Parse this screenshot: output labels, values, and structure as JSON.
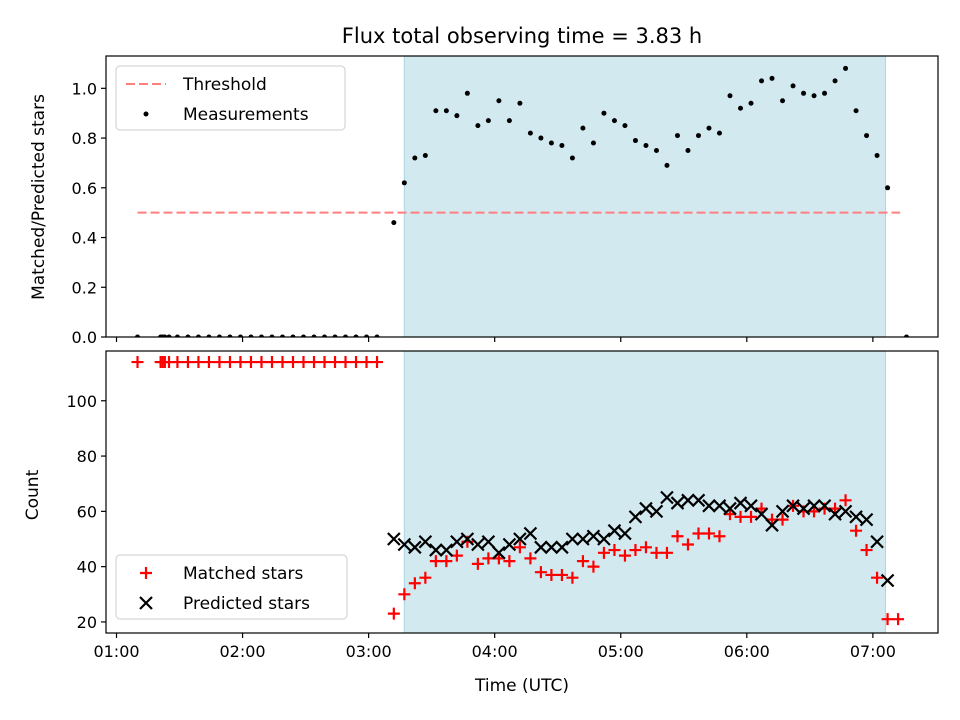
{
  "chart_data": [
    {
      "type": "scatter",
      "title": "Flux total observing time = 3.83 h",
      "ylabel": "Matched/Predicted stars",
      "xlim": [
        "00:55",
        "07:31"
      ],
      "ylim": [
        0,
        1.13
      ],
      "yticks": [
        "0.0",
        "0.2",
        "0.4",
        "0.6",
        "0.8",
        "1.0"
      ],
      "legend_position": "top-left",
      "shaded_span": [
        "03:17",
        "07:06"
      ],
      "threshold": {
        "name": "Threshold",
        "value": 0.5,
        "x_range": [
          "01:10",
          "07:13"
        ],
        "color": "#ff7f7f"
      },
      "series": [
        {
          "name": "Measurements",
          "color": "#000000",
          "points": [
            [
              "01:10",
              0
            ],
            [
              "01:21",
              0
            ],
            [
              "01:22",
              0
            ],
            [
              "01:23",
              0
            ],
            [
              "01:25",
              0
            ],
            [
              "01:29",
              0
            ],
            [
              "01:34",
              0
            ],
            [
              "01:39",
              0
            ],
            [
              "01:44",
              0
            ],
            [
              "01:49",
              0
            ],
            [
              "01:54",
              0
            ],
            [
              "01:59",
              0
            ],
            [
              "02:04",
              0
            ],
            [
              "02:09",
              0
            ],
            [
              "02:14",
              0
            ],
            [
              "02:19",
              0
            ],
            [
              "02:24",
              0
            ],
            [
              "02:29",
              0
            ],
            [
              "02:34",
              0
            ],
            [
              "02:39",
              0
            ],
            [
              "02:44",
              0
            ],
            [
              "02:49",
              0
            ],
            [
              "02:54",
              0
            ],
            [
              "02:59",
              0
            ],
            [
              "03:04",
              0
            ],
            [
              "03:12",
              0.46
            ],
            [
              "03:17",
              0.62
            ],
            [
              "03:22",
              0.72
            ],
            [
              "03:27",
              0.73
            ],
            [
              "03:32",
              0.91
            ],
            [
              "03:37",
              0.91
            ],
            [
              "03:42",
              0.89
            ],
            [
              "03:47",
              0.98
            ],
            [
              "03:52",
              0.85
            ],
            [
              "03:57",
              0.87
            ],
            [
              "04:02",
              0.95
            ],
            [
              "04:07",
              0.87
            ],
            [
              "04:12",
              0.94
            ],
            [
              "04:17",
              0.82
            ],
            [
              "04:22",
              0.8
            ],
            [
              "04:27",
              0.78
            ],
            [
              "04:32",
              0.77
            ],
            [
              "04:37",
              0.72
            ],
            [
              "04:42",
              0.84
            ],
            [
              "04:47",
              0.78
            ],
            [
              "04:52",
              0.9
            ],
            [
              "04:57",
              0.87
            ],
            [
              "05:02",
              0.85
            ],
            [
              "05:07",
              0.79
            ],
            [
              "05:12",
              0.77
            ],
            [
              "05:17",
              0.75
            ],
            [
              "05:22",
              0.69
            ],
            [
              "05:27",
              0.81
            ],
            [
              "05:32",
              0.75
            ],
            [
              "05:37",
              0.81
            ],
            [
              "05:42",
              0.84
            ],
            [
              "05:47",
              0.82
            ],
            [
              "05:52",
              0.97
            ],
            [
              "05:57",
              0.92
            ],
            [
              "06:02",
              0.94
            ],
            [
              "06:07",
              1.03
            ],
            [
              "06:12",
              1.04
            ],
            [
              "06:17",
              0.95
            ],
            [
              "06:22",
              1.01
            ],
            [
              "06:27",
              0.98
            ],
            [
              "06:32",
              0.97
            ],
            [
              "06:37",
              0.98
            ],
            [
              "06:42",
              1.03
            ],
            [
              "06:47",
              1.08
            ],
            [
              "06:52",
              0.91
            ],
            [
              "06:57",
              0.81
            ],
            [
              "07:02",
              0.73
            ],
            [
              "07:07",
              0.6
            ],
            [
              "07:16",
              0
            ]
          ]
        }
      ]
    },
    {
      "type": "scatter",
      "xlabel": "Time (UTC)",
      "ylabel": "Count",
      "xlim": [
        "00:55",
        "07:31"
      ],
      "xticks": [
        "01:00",
        "02:00",
        "03:00",
        "04:00",
        "05:00",
        "06:00",
        "07:00"
      ],
      "ylim": [
        16,
        118
      ],
      "yticks": [
        "20",
        "40",
        "60",
        "80",
        "100"
      ],
      "legend_position": "bottom-left",
      "shaded_span": [
        "03:17",
        "07:06"
      ],
      "series": [
        {
          "name": "Matched stars",
          "marker": "plus",
          "color": "#ff0000",
          "points": [
            [
              "01:10",
              114
            ],
            [
              "01:21",
              114
            ],
            [
              "01:22",
              114
            ],
            [
              "01:23",
              114
            ],
            [
              "01:25",
              114
            ],
            [
              "01:29",
              114
            ],
            [
              "01:34",
              114
            ],
            [
              "01:39",
              114
            ],
            [
              "01:44",
              114
            ],
            [
              "01:49",
              114
            ],
            [
              "01:54",
              114
            ],
            [
              "01:59",
              114
            ],
            [
              "02:04",
              114
            ],
            [
              "02:09",
              114
            ],
            [
              "02:14",
              114
            ],
            [
              "02:19",
              114
            ],
            [
              "02:24",
              114
            ],
            [
              "02:29",
              114
            ],
            [
              "02:34",
              114
            ],
            [
              "02:39",
              114
            ],
            [
              "02:44",
              114
            ],
            [
              "02:49",
              114
            ],
            [
              "02:54",
              114
            ],
            [
              "02:59",
              114
            ],
            [
              "03:04",
              114
            ],
            [
              "03:12",
              23
            ],
            [
              "03:17",
              30
            ],
            [
              "03:22",
              34
            ],
            [
              "03:27",
              36
            ],
            [
              "03:32",
              42
            ],
            [
              "03:37",
              42
            ],
            [
              "03:42",
              44
            ],
            [
              "03:47",
              49
            ],
            [
              "03:52",
              41
            ],
            [
              "03:57",
              43
            ],
            [
              "04:02",
              43
            ],
            [
              "04:07",
              42
            ],
            [
              "04:12",
              47
            ],
            [
              "04:17",
              43
            ],
            [
              "04:22",
              38
            ],
            [
              "04:27",
              37
            ],
            [
              "04:32",
              37
            ],
            [
              "04:37",
              36
            ],
            [
              "04:42",
              42
            ],
            [
              "04:47",
              40
            ],
            [
              "04:52",
              45
            ],
            [
              "04:57",
              46
            ],
            [
              "05:02",
              44
            ],
            [
              "05:07",
              46
            ],
            [
              "05:12",
              47
            ],
            [
              "05:17",
              45
            ],
            [
              "05:22",
              45
            ],
            [
              "05:27",
              51
            ],
            [
              "05:32",
              48
            ],
            [
              "05:37",
              52
            ],
            [
              "05:42",
              52
            ],
            [
              "05:47",
              51
            ],
            [
              "05:52",
              59
            ],
            [
              "05:57",
              58
            ],
            [
              "06:02",
              58
            ],
            [
              "06:07",
              61
            ],
            [
              "06:12",
              57
            ],
            [
              "06:17",
              57
            ],
            [
              "06:22",
              62
            ],
            [
              "06:27",
              60
            ],
            [
              "06:32",
              60
            ],
            [
              "06:37",
              61
            ],
            [
              "06:42",
              61
            ],
            [
              "06:47",
              64
            ],
            [
              "06:52",
              53
            ],
            [
              "06:57",
              46
            ],
            [
              "07:02",
              36
            ],
            [
              "07:07",
              21
            ],
            [
              "07:12",
              21
            ]
          ]
        },
        {
          "name": "Predicted stars",
          "marker": "x",
          "color": "#000000",
          "points": [
            [
              "03:12",
              50
            ],
            [
              "03:17",
              48
            ],
            [
              "03:22",
              47
            ],
            [
              "03:27",
              49
            ],
            [
              "03:32",
              46
            ],
            [
              "03:37",
              46
            ],
            [
              "03:42",
              49
            ],
            [
              "03:47",
              50
            ],
            [
              "03:52",
              48
            ],
            [
              "03:57",
              49
            ],
            [
              "04:02",
              45
            ],
            [
              "04:07",
              48
            ],
            [
              "04:12",
              50
            ],
            [
              "04:17",
              52
            ],
            [
              "04:22",
              47
            ],
            [
              "04:27",
              47
            ],
            [
              "04:32",
              47
            ],
            [
              "04:37",
              50
            ],
            [
              "04:42",
              50
            ],
            [
              "04:47",
              51
            ],
            [
              "04:52",
              50
            ],
            [
              "04:57",
              53
            ],
            [
              "05:02",
              52
            ],
            [
              "05:07",
              58
            ],
            [
              "05:12",
              61
            ],
            [
              "05:17",
              60
            ],
            [
              "05:22",
              65
            ],
            [
              "05:27",
              63
            ],
            [
              "05:32",
              64
            ],
            [
              "05:37",
              64
            ],
            [
              "05:42",
              62
            ],
            [
              "05:47",
              62
            ],
            [
              "05:52",
              61
            ],
            [
              "05:57",
              63
            ],
            [
              "06:02",
              62
            ],
            [
              "06:07",
              59
            ],
            [
              "06:12",
              55
            ],
            [
              "06:17",
              60
            ],
            [
              "06:22",
              62
            ],
            [
              "06:27",
              61
            ],
            [
              "06:32",
              62
            ],
            [
              "06:37",
              62
            ],
            [
              "06:42",
              59
            ],
            [
              "06:47",
              60
            ],
            [
              "06:52",
              58
            ],
            [
              "06:57",
              57
            ],
            [
              "07:02",
              49
            ],
            [
              "07:07",
              35
            ]
          ]
        }
      ]
    }
  ]
}
